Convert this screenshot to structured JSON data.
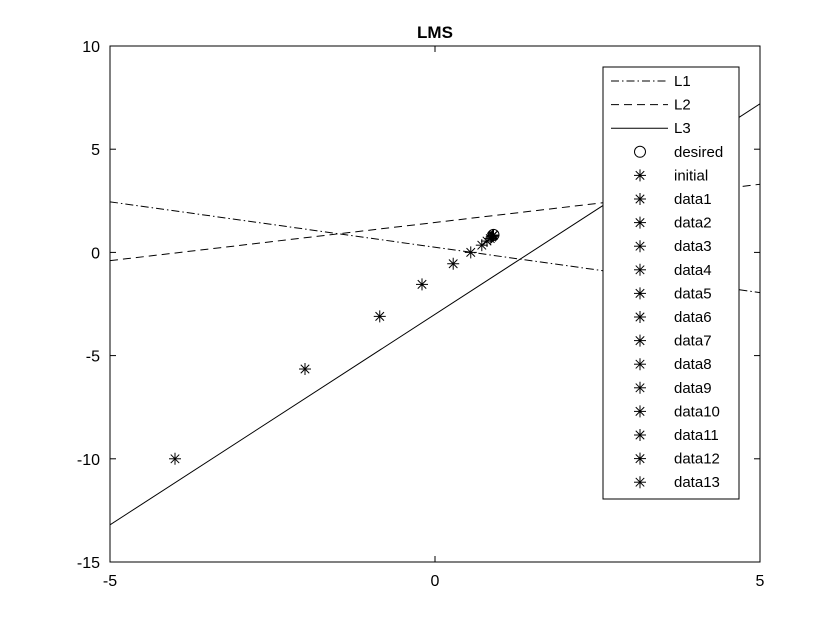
{
  "chart_data": {
    "type": "scatter",
    "title": "LMS",
    "xlabel": "",
    "ylabel": "",
    "xlim": [
      -5,
      5
    ],
    "ylim": [
      -15,
      10
    ],
    "xticks": [
      -5,
      0,
      5
    ],
    "yticks": [
      -15,
      -10,
      -5,
      0,
      5,
      10
    ],
    "xtick_labels": [
      "-5",
      "0",
      "5"
    ],
    "ytick_labels": [
      "-15",
      "-10",
      "-5",
      "0",
      "5",
      "10"
    ],
    "grid": false,
    "legend_position": "top-right",
    "colors": {
      "line": "#000000",
      "background": "#ffffff"
    },
    "series": [
      {
        "name": "L1",
        "kind": "line",
        "style": "dashdot",
        "x": [
          -5,
          5
        ],
        "y": [
          2.45,
          -1.95
        ]
      },
      {
        "name": "L2",
        "kind": "line",
        "style": "dashed",
        "x": [
          -5,
          5
        ],
        "y": [
          -0.4,
          3.3
        ]
      },
      {
        "name": "L3",
        "kind": "line",
        "style": "solid",
        "x": [
          -5,
          5
        ],
        "y": [
          -13.2,
          7.2
        ]
      },
      {
        "name": "desired",
        "kind": "marker",
        "marker": "circle",
        "x": [
          0.9
        ],
        "y": [
          0.85
        ]
      },
      {
        "name": "initial",
        "kind": "marker",
        "marker": "star",
        "x": [
          -4
        ],
        "y": [
          -10
        ]
      },
      {
        "name": "data1",
        "kind": "marker",
        "marker": "star",
        "x": [
          -2
        ],
        "y": [
          -5.65
        ]
      },
      {
        "name": "data2",
        "kind": "marker",
        "marker": "star",
        "x": [
          -0.85
        ],
        "y": [
          -3.1
        ]
      },
      {
        "name": "data3",
        "kind": "marker",
        "marker": "star",
        "x": [
          -0.2
        ],
        "y": [
          -1.55
        ]
      },
      {
        "name": "data4",
        "kind": "marker",
        "marker": "star",
        "x": [
          0.28
        ],
        "y": [
          -0.55
        ]
      },
      {
        "name": "data5",
        "kind": "marker",
        "marker": "star",
        "x": [
          0.55
        ],
        "y": [
          0.0
        ]
      },
      {
        "name": "data6",
        "kind": "marker",
        "marker": "star",
        "x": [
          0.72
        ],
        "y": [
          0.35
        ]
      },
      {
        "name": "data7",
        "kind": "marker",
        "marker": "star",
        "x": [
          0.8
        ],
        "y": [
          0.55
        ]
      },
      {
        "name": "data8",
        "kind": "marker",
        "marker": "star",
        "x": [
          0.85
        ],
        "y": [
          0.67
        ]
      },
      {
        "name": "data9",
        "kind": "marker",
        "marker": "star",
        "x": [
          0.87
        ],
        "y": [
          0.74
        ]
      },
      {
        "name": "data10",
        "kind": "marker",
        "marker": "star",
        "x": [
          0.88
        ],
        "y": [
          0.78
        ]
      },
      {
        "name": "data11",
        "kind": "marker",
        "marker": "star",
        "x": [
          0.89
        ],
        "y": [
          0.81
        ]
      },
      {
        "name": "data12",
        "kind": "marker",
        "marker": "star",
        "x": [
          0.895
        ],
        "y": [
          0.83
        ]
      },
      {
        "name": "data13",
        "kind": "marker",
        "marker": "star",
        "x": [
          0.9
        ],
        "y": [
          0.84
        ]
      }
    ]
  }
}
